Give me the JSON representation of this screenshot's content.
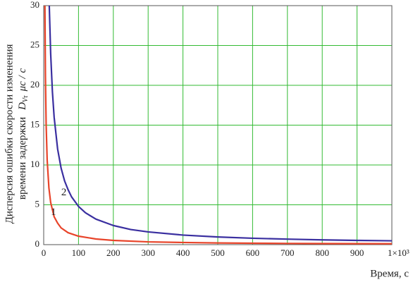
{
  "chart_data": {
    "type": "line",
    "y_label_lines": [
      "Дисперсия ошибки скорости изменения",
      "времени задержки"
    ],
    "y_symbol": "D",
    "y_symbol_sub": "Vτ",
    "y_unit": "μс / с",
    "x_label": "Время, с",
    "xlim": [
      0,
      1000
    ],
    "ylim": [
      0,
      30
    ],
    "xticks": [
      0,
      100,
      200,
      300,
      400,
      500,
      600,
      700,
      800,
      900,
      {
        "value": 1000,
        "label": "1×10³"
      }
    ],
    "yticks": [
      0,
      5,
      10,
      15,
      20,
      25,
      30
    ],
    "grid": true,
    "grid_color": "#33bb33",
    "series": [
      {
        "name": "1",
        "color": "#e8442a",
        "x": [
          3.5,
          5,
          7,
          10,
          15,
          20,
          30,
          40,
          50,
          70,
          100,
          150,
          200,
          300,
          400,
          500,
          600,
          700,
          800,
          900,
          1000
        ],
        "values": [
          30,
          21.2,
          15.1,
          10.6,
          7.1,
          5.3,
          3.5,
          2.7,
          2.1,
          1.5,
          1.06,
          0.71,
          0.53,
          0.35,
          0.27,
          0.21,
          0.18,
          0.15,
          0.13,
          0.12,
          0.11
        ]
      },
      {
        "name": "2",
        "color": "#3a2fa0",
        "x": [
          16,
          20,
          25,
          30,
          40,
          50,
          60,
          70,
          80,
          100,
          120,
          150,
          200,
          250,
          300,
          400,
          500,
          600,
          700,
          800,
          900,
          1000
        ],
        "values": [
          30,
          24,
          19.2,
          16,
          12,
          9.6,
          8,
          6.9,
          6,
          4.8,
          4,
          3.2,
          2.4,
          1.9,
          1.6,
          1.2,
          0.96,
          0.8,
          0.69,
          0.6,
          0.53,
          0.48
        ]
      }
    ]
  }
}
